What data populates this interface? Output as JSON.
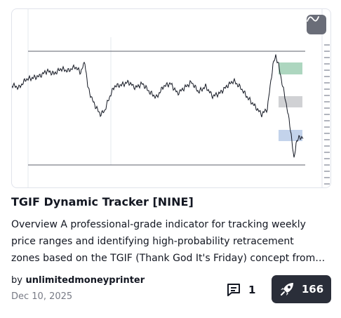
{
  "card": {
    "title": "TGIF Dynamic Tracker [NINE]",
    "description_lines": [
      "Overview A professional-grade indicator for tracking weekly",
      "price ranges and identifying high-probability retracement",
      "zones based on the TGIF (Thank God It's Friday) concept from…"
    ],
    "author_prefix": "by",
    "author": "unlimitedmoneyprinter",
    "date": "Dec 10, 2025",
    "comments_count": "1",
    "boosts_count": "166"
  },
  "icons": {
    "chart_toggle": "line-chart-icon",
    "comment": "comment-icon",
    "boost": "rocket-icon"
  },
  "colors": {
    "zone_green": "#9fcfb4",
    "zone_gray": "#c8c9cd",
    "zone_blue": "#b8cbe8",
    "price_line": "#131722",
    "boost_bg": "#2a2e39"
  }
}
